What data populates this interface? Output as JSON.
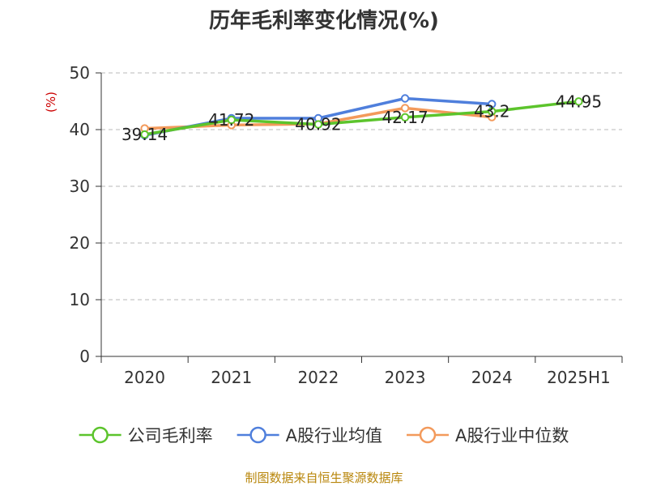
{
  "chart_data": {
    "type": "line",
    "title": "历年毛利率变化情况(%)",
    "ylabel": "(%)",
    "xlabel": "",
    "categories": [
      "2020",
      "2021",
      "2022",
      "2023",
      "2024",
      "2025H1"
    ],
    "ylim": [
      0,
      50
    ],
    "yticks": [
      0,
      10,
      20,
      30,
      40,
      50
    ],
    "grid": true,
    "legend_position": "bottom",
    "series": [
      {
        "name": "公司毛利率",
        "color": "#5cc42c",
        "values": [
          39.14,
          41.72,
          40.92,
          42.17,
          43.2,
          44.95
        ],
        "labels": [
          "39.14",
          "41.72",
          "40.92",
          "42.17",
          "43.2",
          "44.95"
        ]
      },
      {
        "name": "A股行业均值",
        "color": "#4f7fdc",
        "values": [
          39.0,
          42.0,
          42.0,
          45.5,
          44.5,
          null
        ]
      },
      {
        "name": "A股行业中位数",
        "color": "#f39a5b",
        "values": [
          40.2,
          40.8,
          41.0,
          43.8,
          42.2,
          null
        ]
      }
    ]
  },
  "source": "制图数据来自恒生聚源数据库"
}
